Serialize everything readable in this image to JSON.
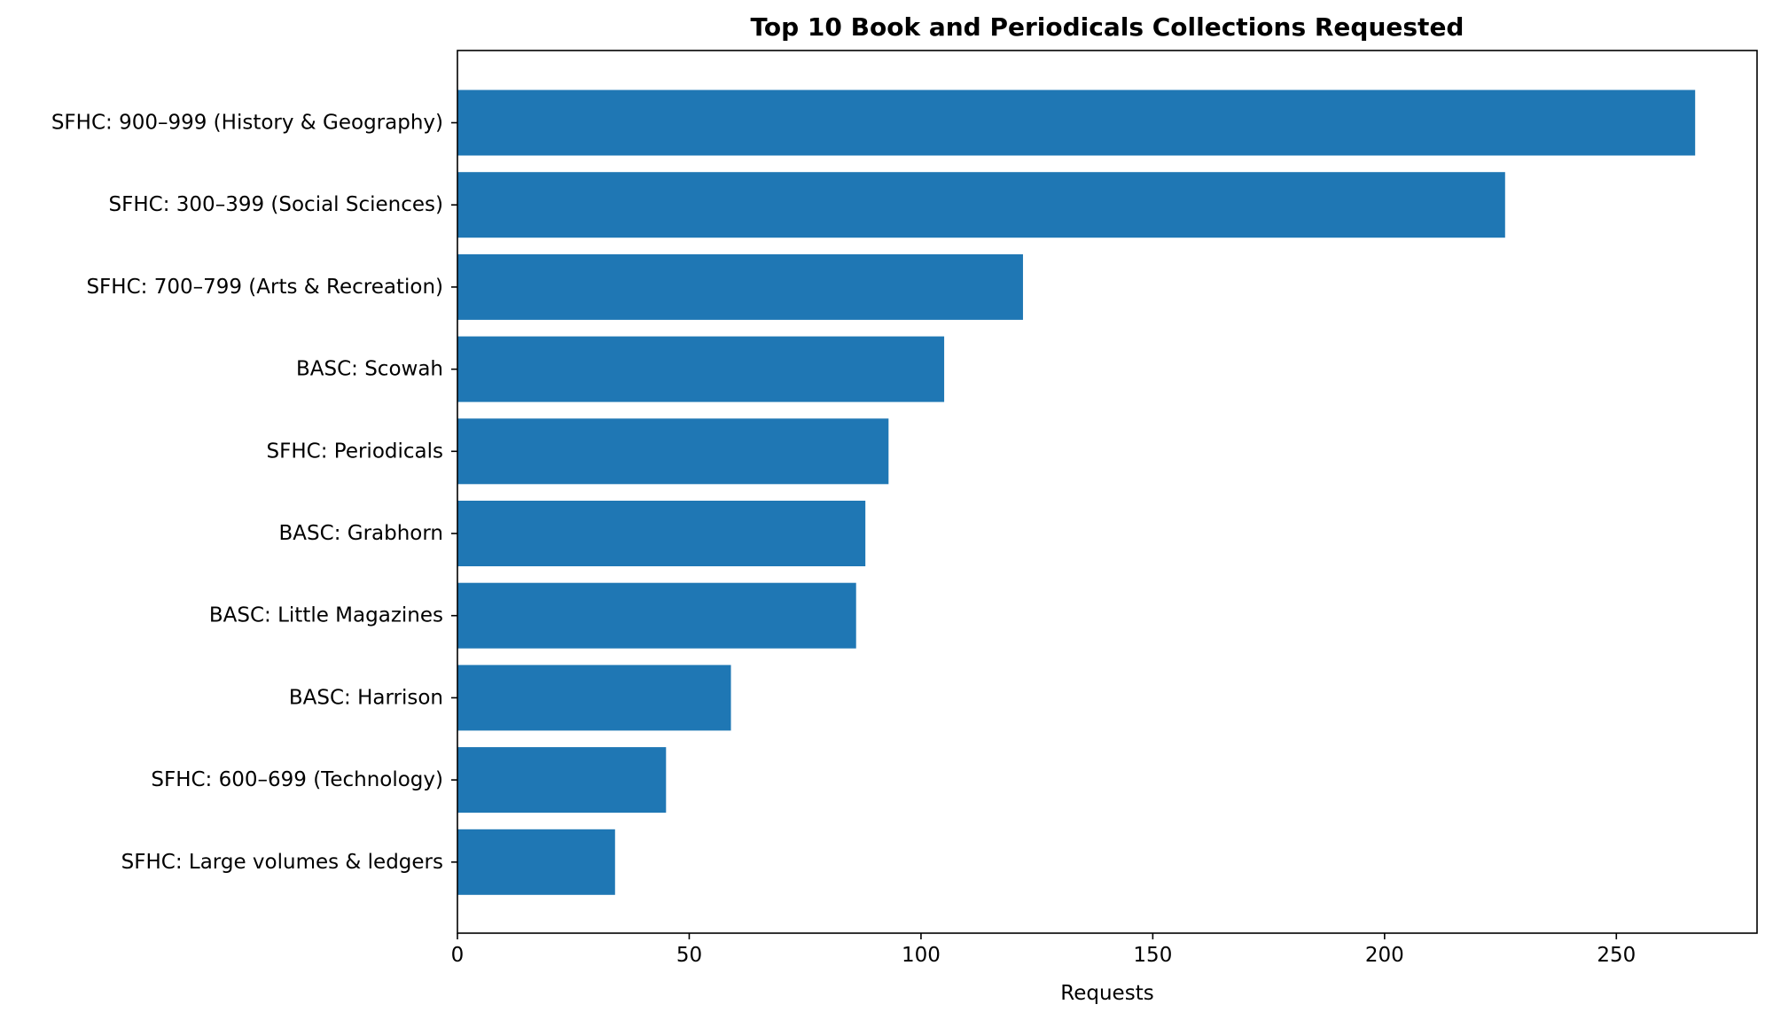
{
  "chart_data": {
    "type": "bar",
    "orientation": "horizontal",
    "title": "Top 10 Book and Periodicals Collections Requested",
    "xlabel": "Requests",
    "ylabel": "",
    "categories": [
      "SFHC: 900–999 (History & Geography)",
      "SFHC: 300–399 (Social Sciences)",
      "SFHC: 700–799 (Arts & Recreation)",
      "BASC: Scowah",
      "SFHC: Periodicals",
      "BASC: Grabhorn",
      "BASC: Little Magazines",
      "BASC: Harrison",
      "SFHC: 600–699 (Technology)",
      "SFHC: Large volumes & ledgers"
    ],
    "values": [
      267,
      226,
      122,
      105,
      93,
      88,
      86,
      59,
      45,
      34
    ],
    "xlim": [
      0,
      280.35
    ],
    "xticks": [
      0,
      50,
      100,
      150,
      200,
      250
    ],
    "xtick_labels": [
      "0",
      "50",
      "100",
      "150",
      "200",
      "250"
    ],
    "grid": false,
    "legend": "none",
    "bar_color": "#1f77b4"
  }
}
